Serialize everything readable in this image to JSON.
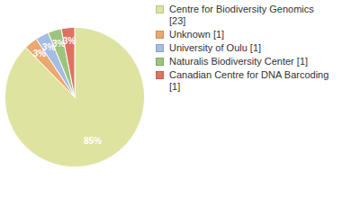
{
  "chart_data": {
    "type": "pie",
    "categories": [
      "Centre for Biodiversity Genomics [23]",
      "Unknown [1]",
      "University of Oulu [1]",
      "Naturalis Biodiversity Center [1]",
      "Canadian Centre for DNA Barcoding [1]"
    ],
    "values": [
      85,
      3,
      3,
      3,
      3
    ],
    "value_labels": [
      "85%",
      "3%",
      "3%",
      "3%",
      "3%"
    ],
    "colors": [
      "#dfe3a0",
      "#eba86f",
      "#a6bde3",
      "#9cc47c",
      "#de7262"
    ],
    "data_labels": true,
    "legend": "top-right"
  }
}
